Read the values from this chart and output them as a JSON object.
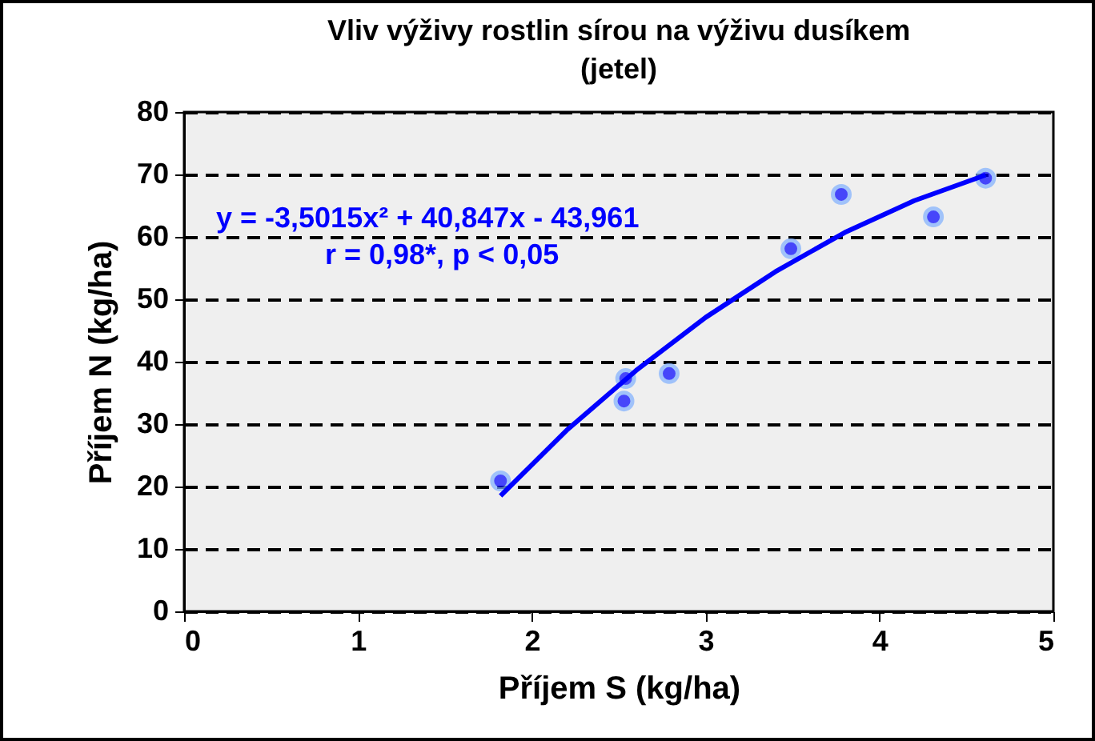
{
  "chart_data": {
    "type": "scatter",
    "title": "Vliv výživy rostlin sírou na výživu dusíkem\n(jetel)",
    "xlabel": "Příjem S (kg/ha)",
    "ylabel": "Příjem N (kg/ha)",
    "x": [
      1.82,
      2.53,
      2.54,
      2.79,
      3.49,
      3.78,
      4.31,
      4.61
    ],
    "series": [
      {
        "color": "#0000ff",
        "marker": "circle",
        "values": [
          20.9,
          33.7,
          37.3,
          38.1,
          58.1,
          66.8,
          63.2,
          69.4
        ]
      },
      {
        "type": "line",
        "marker": "none",
        "color": "#0000ff",
        "x": [
          1.82,
          2.2,
          2.6,
          3.0,
          3.4,
          3.8,
          4.2,
          4.61
        ],
        "values": [
          18.5,
          29.0,
          38.6,
          47.1,
          54.4,
          60.7,
          65.8,
          69.9
        ]
      }
    ],
    "xlim": [
      0,
      5
    ],
    "xticks": [
      0,
      1,
      2,
      3,
      4,
      5
    ],
    "ylim": [
      0,
      80
    ],
    "yticks": [
      0,
      10,
      20,
      30,
      40,
      50,
      60,
      70,
      80
    ],
    "grid": "y",
    "line_style": "solid",
    "annotations": [
      "y = -3,5015x² + 40,847x - 43,961",
      "r = 0,98*, p < 0,05"
    ]
  }
}
